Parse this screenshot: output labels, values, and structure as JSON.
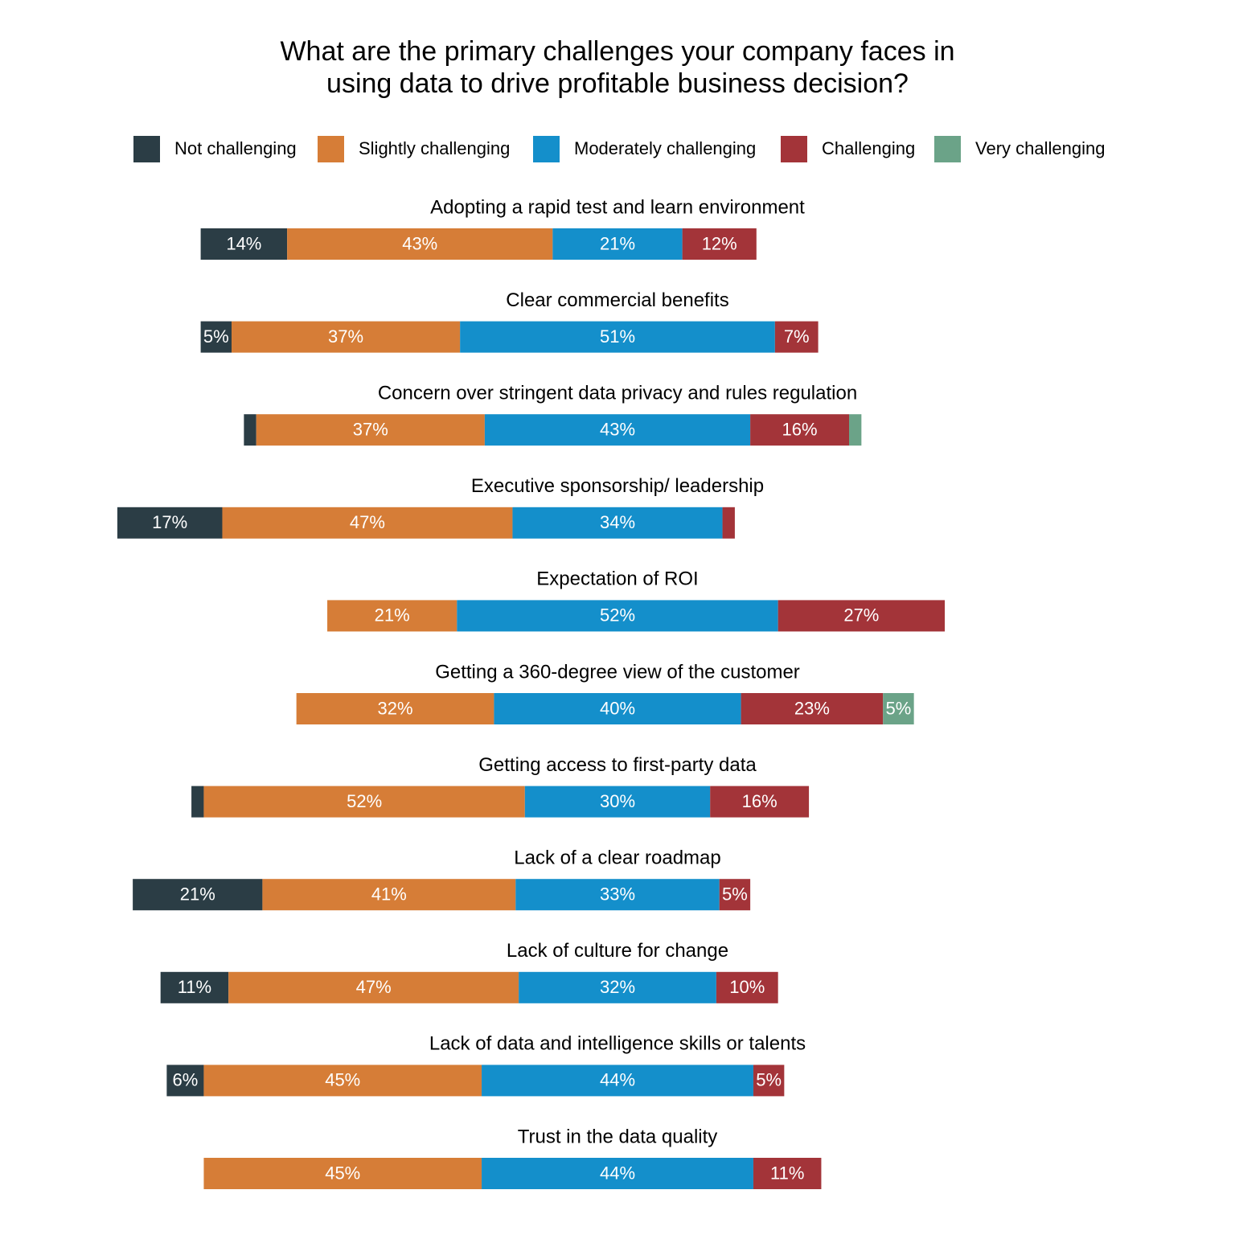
{
  "chart_data": {
    "type": "bar",
    "orientation": "horizontal-diverging-stacked",
    "title": [
      "What are the primary challenges your company faces in",
      "using data to drive profitable business decision?"
    ],
    "legend_position": "top",
    "series": [
      {
        "name": "Not challenging",
        "color": "#2b3d45"
      },
      {
        "name": "Slightly challenging",
        "color": "#d67d37"
      },
      {
        "name": "Moderately challenging",
        "color": "#148fcb"
      },
      {
        "name": "Challenging",
        "color": "#a33439"
      },
      {
        "name": "Very challenging",
        "color": "#6ba388"
      }
    ],
    "categories": [
      {
        "name": "Adopting a rapid test and learn environment",
        "values": [
          14,
          43,
          21,
          12,
          0
        ],
        "labels": [
          "14%",
          "43%",
          "21%",
          "12%",
          ""
        ]
      },
      {
        "name": "Clear commercial benefits",
        "values": [
          5,
          37,
          51,
          7,
          0
        ],
        "labels": [
          "5%",
          "37%",
          "51%",
          "7%",
          ""
        ]
      },
      {
        "name": "Concern over stringent data privacy and rules regulation",
        "values": [
          2,
          37,
          43,
          16,
          2
        ],
        "labels": [
          "",
          "37%",
          "43%",
          "16%",
          ""
        ]
      },
      {
        "name": "Executive sponsorship/ leadership",
        "values": [
          17,
          47,
          34,
          2,
          0
        ],
        "labels": [
          "17%",
          "47%",
          "34%",
          "",
          ""
        ]
      },
      {
        "name": "Expectation of ROI",
        "values": [
          0,
          21,
          52,
          27,
          0
        ],
        "labels": [
          "",
          "21%",
          "52%",
          "27%",
          ""
        ]
      },
      {
        "name": "Getting a 360-degree view of the customer",
        "values": [
          0,
          32,
          40,
          23,
          5
        ],
        "labels": [
          "",
          "32%",
          "40%",
          "23%",
          "5%"
        ]
      },
      {
        "name": "Getting access to first-party data",
        "values": [
          2,
          52,
          30,
          16,
          0
        ],
        "labels": [
          "",
          "52%",
          "30%",
          "16%",
          ""
        ]
      },
      {
        "name": "Lack of a clear roadmap",
        "values": [
          21,
          41,
          33,
          5,
          0
        ],
        "labels": [
          "21%",
          "41%",
          "33%",
          "5%",
          ""
        ]
      },
      {
        "name": "Lack of culture for change",
        "values": [
          11,
          47,
          32,
          10,
          0
        ],
        "labels": [
          "11%",
          "47%",
          "32%",
          "10%",
          ""
        ]
      },
      {
        "name": "Lack of data and intelligence skills or talents",
        "values": [
          6,
          45,
          44,
          5,
          0
        ],
        "labels": [
          "6%",
          "45%",
          "44%",
          "5%",
          ""
        ]
      },
      {
        "name": "Trust in the data quality",
        "values": [
          0,
          45,
          44,
          11,
          0
        ],
        "labels": [
          "",
          "45%",
          "44%",
          "11%",
          ""
        ]
      }
    ]
  }
}
